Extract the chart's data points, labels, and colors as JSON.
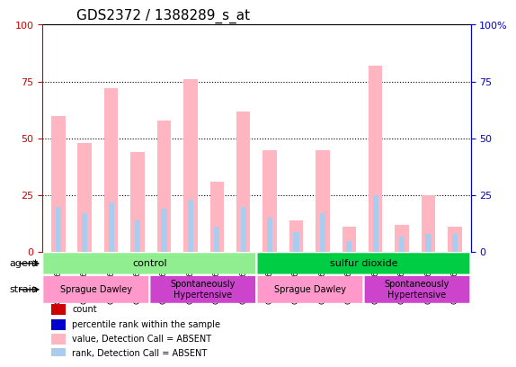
{
  "title": "GDS2372 / 1388289_s_at",
  "samples": [
    "GSM106238",
    "GSM106239",
    "GSM106247",
    "GSM106248",
    "GSM106233",
    "GSM106234",
    "GSM106235",
    "GSM106236",
    "GSM106240",
    "GSM106241",
    "GSM106242",
    "GSM106243",
    "GSM106237",
    "GSM106244",
    "GSM106245",
    "GSM106246"
  ],
  "value_bars": [
    60,
    48,
    72,
    44,
    58,
    76,
    31,
    62,
    45,
    14,
    45,
    11,
    82,
    12,
    25,
    11
  ],
  "rank_bars": [
    20,
    17,
    22,
    14,
    19,
    23,
    11,
    20,
    15,
    9,
    17,
    5,
    25,
    7,
    8,
    8
  ],
  "value_color": "#FFB6C1",
  "rank_color": "#6699CC",
  "absent_value_color": "#FFB6C1",
  "absent_rank_color": "#AACCEE",
  "detection_absent": [
    true,
    true,
    true,
    true,
    true,
    true,
    true,
    true,
    true,
    true,
    true,
    true,
    true,
    true,
    true,
    true
  ],
  "ylim": [
    0,
    100
  ],
  "grid_lines": [
    25,
    50,
    75
  ],
  "agent_groups": [
    {
      "label": "control",
      "start": 0,
      "end": 8,
      "color": "#90EE90"
    },
    {
      "label": "sulfur dioxide",
      "start": 8,
      "end": 16,
      "color": "#00CC44"
    }
  ],
  "strain_groups": [
    {
      "label": "Sprague Dawley",
      "start": 0,
      "end": 4,
      "color": "#FF99CC"
    },
    {
      "label": "Spontaneously\nHypertensive",
      "start": 4,
      "end": 8,
      "color": "#CC44CC"
    },
    {
      "label": "Sprague Dawley",
      "start": 8,
      "end": 12,
      "color": "#FF99CC"
    },
    {
      "label": "Spontaneously\nHypertensive",
      "start": 12,
      "end": 16,
      "color": "#CC44CC"
    }
  ],
  "legend_items": [
    {
      "label": "count",
      "color": "#CC0000",
      "marker": "s"
    },
    {
      "label": "percentile rank within the sample",
      "color": "#0000CC",
      "marker": "s"
    },
    {
      "label": "value, Detection Call = ABSENT",
      "color": "#FFB6C1",
      "marker": "s"
    },
    {
      "label": "rank, Detection Call = ABSENT",
      "color": "#AACCEE",
      "marker": "s"
    }
  ],
  "left_axis_color": "#CC0000",
  "right_axis_color": "#0000CC",
  "background_color": "#FFFFFF",
  "plot_bg_color": "#FFFFFF"
}
